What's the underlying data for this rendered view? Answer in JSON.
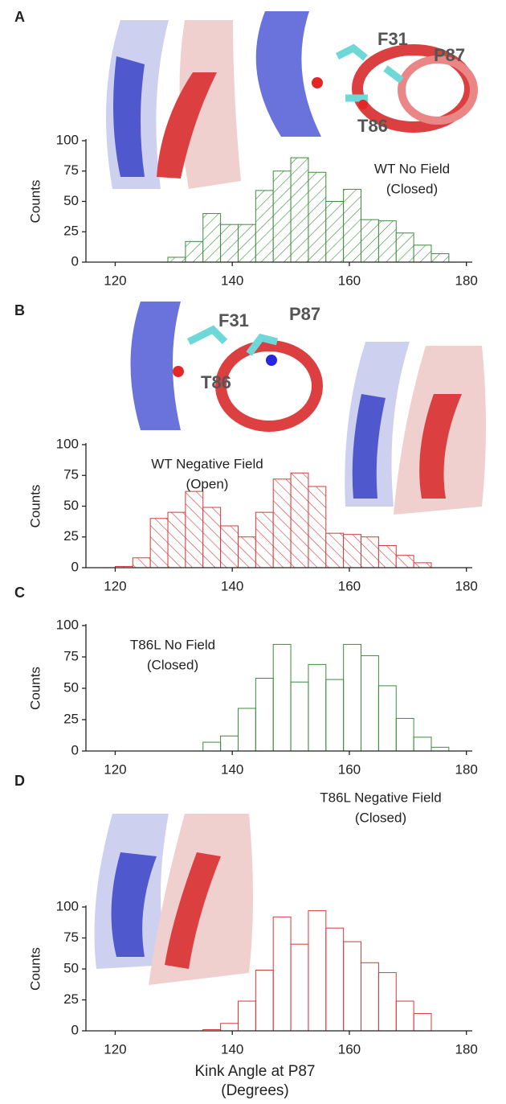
{
  "chart_data": [
    {
      "type": "histogram",
      "panel": "A",
      "annotation": [
        "WT No Field",
        "(Closed)"
      ],
      "residue_labels": [
        "F31",
        "P87",
        "T86"
      ],
      "bins": [
        129,
        132,
        135,
        138,
        141,
        144,
        147,
        150,
        153,
        156,
        159,
        162,
        165,
        168,
        171,
        174,
        177
      ],
      "values": [
        4,
        17,
        40,
        31,
        31,
        59,
        75,
        86,
        74,
        50,
        60,
        35,
        34,
        24,
        14,
        7
      ],
      "color": "#3d8b3d",
      "hatch": "/",
      "ylabel": "Counts",
      "xlim": [
        115,
        181
      ],
      "ylim": [
        0,
        100
      ],
      "xticks": [
        120,
        140,
        160,
        180
      ],
      "yticks": [
        0,
        25,
        50,
        75,
        100
      ]
    },
    {
      "type": "histogram",
      "panel": "B",
      "annotation": [
        "WT Negative Field",
        "(Open)"
      ],
      "residue_labels": [
        "F31",
        "P87",
        "T86"
      ],
      "bins": [
        120,
        123,
        126,
        129,
        132,
        135,
        138,
        141,
        144,
        147,
        150,
        153,
        156,
        159,
        162,
        165,
        168,
        171,
        174
      ],
      "values": [
        1,
        8,
        40,
        45,
        62,
        49,
        34,
        25,
        45,
        72,
        77,
        66,
        28,
        27,
        25,
        18,
        10,
        4
      ],
      "color": "#d43a3a",
      "hatch": "\\",
      "ylabel": "Counts",
      "xlim": [
        115,
        181
      ],
      "ylim": [
        0,
        100
      ],
      "xticks": [
        120,
        140,
        160,
        180
      ],
      "yticks": [
        0,
        25,
        50,
        75,
        100
      ]
    },
    {
      "type": "histogram",
      "panel": "C",
      "annotation": [
        "T86L No Field",
        "(Closed)"
      ],
      "bins": [
        135,
        138,
        141,
        144,
        147,
        150,
        153,
        156,
        159,
        162,
        165,
        168,
        171,
        174,
        177
      ],
      "values": [
        7,
        12,
        34,
        58,
        85,
        55,
        69,
        57,
        85,
        76,
        52,
        26,
        11,
        3
      ],
      "color": "#3d8b3d",
      "ylabel": "Counts",
      "xlim": [
        115,
        181
      ],
      "ylim": [
        0,
        100
      ],
      "xticks": [
        120,
        140,
        160,
        180
      ],
      "yticks": [
        0,
        25,
        50,
        75,
        100
      ]
    },
    {
      "type": "histogram",
      "panel": "D",
      "annotation": [
        "T86L Negative Field",
        "(Closed)"
      ],
      "bins": [
        135,
        138,
        141,
        144,
        147,
        150,
        153,
        156,
        159,
        162,
        165,
        168,
        171,
        174
      ],
      "values": [
        1,
        6,
        24,
        49,
        92,
        70,
        97,
        83,
        72,
        55,
        47,
        24,
        14
      ],
      "color": "#d43a3a",
      "ylabel": "Counts",
      "xlabel": [
        "Kink Angle at P87",
        "(Degrees)"
      ],
      "xlim": [
        115,
        181
      ],
      "ylim": [
        0,
        100
      ],
      "xticks": [
        120,
        140,
        160,
        180
      ],
      "yticks": [
        0,
        25,
        50,
        75,
        100
      ]
    }
  ]
}
